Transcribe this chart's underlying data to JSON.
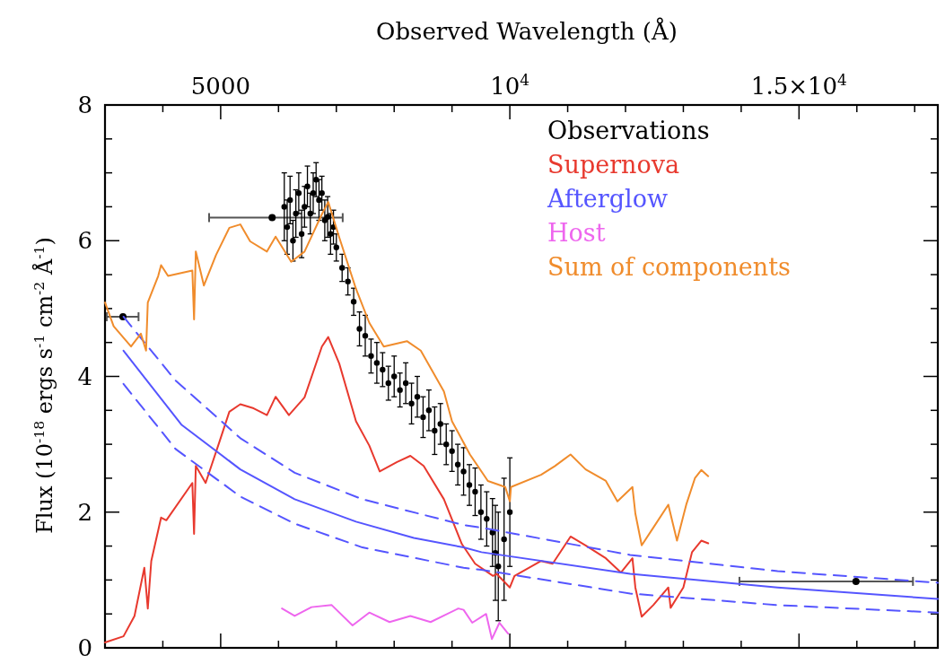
{
  "chart_data": {
    "type": "line",
    "xlabel": "Observed Wavelength (Å)",
    "ylabel": "Flux (10$^{-18}$ ergs s$^{-1}$ cm$^{-2}$ Å$^{-1}$)",
    "xlim": [
      3000,
      17400
    ],
    "ylim": [
      0,
      8
    ],
    "xticks": [
      {
        "value": 3000,
        "label": null
      },
      {
        "value": 4000,
        "label": null
      },
      {
        "value": 5000,
        "label": "5000"
      },
      {
        "value": 6000,
        "label": null
      },
      {
        "value": 7000,
        "label": null
      },
      {
        "value": 8000,
        "label": null
      },
      {
        "value": 9000,
        "label": null
      },
      {
        "value": 10000,
        "label": "10$^{4}$"
      },
      {
        "value": 11000,
        "label": null
      },
      {
        "value": 12000,
        "label": null
      },
      {
        "value": 13000,
        "label": null
      },
      {
        "value": 14000,
        "label": null
      },
      {
        "value": 15000,
        "label": "1.5×10$^{4}$"
      },
      {
        "value": 16000,
        "label": null
      },
      {
        "value": 17000,
        "label": null
      }
    ],
    "yticks": [
      0,
      {
        "value": 0.5,
        "label": null
      },
      {
        "value": 1,
        "label": null
      },
      {
        "value": 1.5,
        "label": null
      },
      2,
      {
        "value": 2.5,
        "label": null
      },
      {
        "value": 3,
        "label": null
      },
      {
        "value": 3.5,
        "label": null
      },
      4,
      {
        "value": 4.5,
        "label": null
      },
      {
        "value": 5,
        "label": null
      },
      {
        "value": 5.5,
        "label": null
      },
      6,
      {
        "value": 6.5,
        "label": null
      },
      {
        "value": 7,
        "label": null
      },
      {
        "value": 7.5,
        "label": null
      },
      8
    ],
    "legend": "top right",
    "series": [
      {
        "name": "Observations",
        "type": "scatter",
        "marker": "circle",
        "color": "#000000",
        "x": [
          3310,
          5890,
          15985,
          6100,
          6150,
          6200,
          6250,
          6300,
          6350,
          6400,
          6450,
          6500,
          6550,
          6600,
          6650,
          6700,
          6750,
          6800,
          6850,
          6900,
          6950,
          7000,
          7100,
          7200,
          7300,
          7400,
          7500,
          7600,
          7700,
          7800,
          7900,
          8000,
          8100,
          8200,
          8300,
          8400,
          8500,
          8600,
          8700,
          8800,
          8900,
          9000,
          9100,
          9200,
          9300,
          9400,
          9500,
          9600,
          9700,
          9750,
          9800,
          9900,
          10000
        ],
        "values": [
          4.88,
          6.34,
          0.98,
          6.5,
          6.2,
          6.6,
          6.0,
          6.4,
          6.7,
          6.1,
          6.5,
          6.8,
          6.4,
          6.7,
          6.9,
          6.6,
          6.7,
          6.3,
          6.35,
          6.1,
          6.2,
          5.9,
          5.6,
          5.4,
          5.1,
          4.7,
          4.6,
          4.3,
          4.2,
          4.1,
          3.9,
          4.0,
          3.8,
          3.9,
          3.6,
          3.7,
          3.4,
          3.5,
          3.2,
          3.3,
          3.0,
          2.9,
          2.7,
          2.6,
          2.4,
          2.3,
          2.0,
          1.9,
          1.7,
          1.4,
          1.2,
          1.6,
          2.0
        ],
        "errors": [
          null,
          null,
          null,
          0.5,
          0.4,
          0.35,
          0.3,
          0.35,
          0.3,
          0.35,
          0.3,
          0.3,
          0.3,
          0.3,
          0.25,
          0.3,
          0.25,
          0.3,
          0.3,
          0.3,
          0.25,
          0.2,
          0.2,
          0.2,
          0.2,
          0.25,
          0.3,
          0.25,
          0.3,
          0.25,
          0.25,
          0.3,
          0.25,
          0.3,
          0.3,
          0.3,
          0.3,
          0.3,
          0.35,
          0.3,
          0.3,
          0.3,
          0.3,
          0.35,
          0.3,
          0.35,
          0.4,
          0.4,
          0.5,
          0.7,
          0.8,
          0.9,
          0.8
        ],
        "xerrors": [
          [
            3030,
            3580
          ],
          [
            4800,
            7110
          ],
          [
            13970,
            16970
          ],
          null,
          null,
          null,
          null,
          null,
          null,
          null,
          null,
          null,
          null,
          null,
          null,
          null,
          null,
          null,
          null,
          null,
          null,
          null,
          null,
          null,
          null,
          null,
          null,
          null,
          null,
          null,
          null,
          null,
          null,
          null,
          null,
          null,
          null,
          null,
          null,
          null,
          null,
          null,
          null,
          null,
          null,
          null,
          null,
          null,
          null,
          null,
          null,
          null,
          null
        ]
      },
      {
        "name": "Supernova",
        "color": "#e8392e",
        "x": [
          3000,
          3320,
          3510,
          3680,
          3740,
          3800,
          3970,
          4060,
          4510,
          4540,
          4570,
          4740,
          4980,
          5150,
          5340,
          5570,
          5800,
          5950,
          6180,
          6450,
          6750,
          6860,
          7050,
          7340,
          7570,
          7750,
          8050,
          8280,
          8510,
          8860,
          9170,
          9400,
          9710,
          9770,
          10000,
          10080,
          10540,
          10740,
          11050,
          11310,
          11660,
          11920,
          12120,
          12170,
          12280,
          12480,
          12740,
          12780,
          13000,
          13150,
          13310,
          13430
        ],
        "values": [
          0.08,
          0.17,
          0.47,
          1.18,
          0.58,
          1.28,
          1.92,
          1.88,
          2.43,
          1.68,
          2.68,
          2.43,
          3.04,
          3.48,
          3.59,
          3.53,
          3.43,
          3.7,
          3.43,
          3.69,
          4.44,
          4.58,
          4.19,
          3.34,
          2.98,
          2.6,
          2.74,
          2.83,
          2.68,
          2.19,
          1.53,
          1.24,
          1.06,
          1.09,
          0.89,
          1.06,
          1.28,
          1.24,
          1.64,
          1.51,
          1.32,
          1.11,
          1.32,
          0.89,
          0.46,
          0.63,
          0.89,
          0.59,
          0.89,
          1.41,
          1.58,
          1.54
        ]
      },
      {
        "name": "Afterglow",
        "color": "#5555ff",
        "x": [
          3320,
          4320,
          5340,
          6280,
          7340,
          8340,
          9200,
          9510,
          12080,
          14630,
          17400
        ],
        "values": [
          4.38,
          3.29,
          2.63,
          2.19,
          1.86,
          1.62,
          1.48,
          1.41,
          1.09,
          0.89,
          0.72
        ]
      },
      {
        "color": "#5555ff",
        "line_style": "dashed",
        "x": [
          3320,
          4220,
          5340,
          6280,
          7450,
          9200,
          9510,
          12080,
          14630,
          17400
        ],
        "values": [
          4.88,
          3.94,
          3.09,
          2.58,
          2.19,
          1.81,
          1.77,
          1.37,
          1.13,
          0.96
        ]
      },
      {
        "color": "#5555ff",
        "line_style": "dashed",
        "x": [
          3320,
          4220,
          5340,
          6280,
          7450,
          9200,
          9510,
          12080,
          14630,
          17400
        ],
        "values": [
          3.89,
          2.93,
          2.23,
          1.83,
          1.48,
          1.18,
          1.15,
          0.8,
          0.63,
          0.52
        ]
      },
      {
        "name": "Host",
        "color": "#ee66ee",
        "x": [
          6060,
          6280,
          6570,
          6920,
          7280,
          7570,
          7920,
          8280,
          8630,
          9110,
          9200,
          9350,
          9590,
          9690,
          9820,
          9970
        ],
        "values": [
          0.58,
          0.47,
          0.6,
          0.63,
          0.33,
          0.52,
          0.38,
          0.47,
          0.38,
          0.58,
          0.56,
          0.37,
          0.5,
          0.13,
          0.37,
          0.21
        ]
      },
      {
        "name": "Sum of components",
        "color": "#f08c2c",
        "x": [
          3000,
          3150,
          3450,
          3620,
          3710,
          3740,
          3920,
          3970,
          4090,
          4510,
          4540,
          4570,
          4710,
          4920,
          5150,
          5340,
          5510,
          5800,
          5950,
          6220,
          6450,
          6750,
          6860,
          7050,
          7340,
          7570,
          7820,
          8220,
          8460,
          8860,
          9000,
          9310,
          9620,
          9920,
          10000,
          10020,
          10540,
          10780,
          11050,
          11310,
          11660,
          11860,
          12120,
          12170,
          12280,
          12480,
          12740,
          12890,
          13050,
          13200,
          13310,
          13430
        ],
        "values": [
          5.09,
          4.74,
          4.44,
          4.63,
          4.38,
          5.09,
          5.48,
          5.64,
          5.48,
          5.56,
          4.84,
          5.84,
          5.34,
          5.79,
          6.19,
          6.24,
          5.99,
          5.84,
          6.06,
          5.69,
          5.84,
          6.39,
          6.57,
          6.05,
          5.29,
          4.79,
          4.44,
          4.52,
          4.38,
          3.78,
          3.34,
          2.85,
          2.46,
          2.37,
          2.16,
          2.37,
          2.55,
          2.68,
          2.85,
          2.63,
          2.46,
          2.16,
          2.37,
          1.98,
          1.51,
          1.77,
          2.11,
          1.58,
          2.11,
          2.5,
          2.62,
          2.53
        ]
      }
    ]
  }
}
